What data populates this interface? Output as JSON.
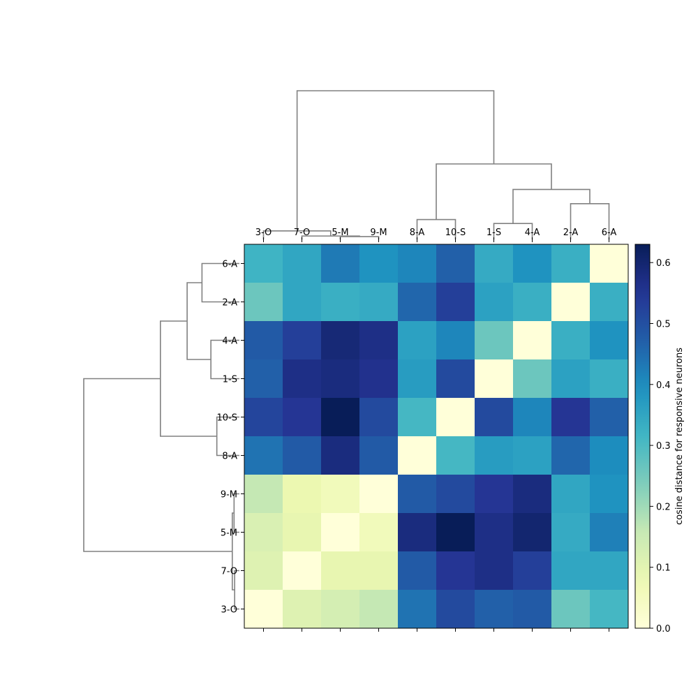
{
  "chart_data": {
    "type": "heatmap",
    "title": "",
    "x_labels": [
      "3-O",
      "7-O",
      "5-M",
      "9-M",
      "8-A",
      "10-S",
      "1-S",
      "4-A",
      "2-A",
      "6-A"
    ],
    "y_labels": [
      "6-A",
      "2-A",
      "4-A",
      "1-S",
      "10-S",
      "8-A",
      "9-M",
      "5-M",
      "7-O",
      "3-O"
    ],
    "values": [
      [
        0.32,
        0.35,
        0.43,
        0.39,
        0.41,
        0.47,
        0.34,
        0.39,
        0.33,
        0.0
      ],
      [
        0.26,
        0.35,
        0.33,
        0.34,
        0.46,
        0.53,
        0.36,
        0.33,
        0.0,
        0.33
      ],
      [
        0.48,
        0.53,
        0.59,
        0.57,
        0.36,
        0.41,
        0.26,
        0.0,
        0.33,
        0.39
      ],
      [
        0.47,
        0.57,
        0.58,
        0.56,
        0.37,
        0.51,
        0.0,
        0.26,
        0.36,
        0.33
      ],
      [
        0.52,
        0.55,
        0.63,
        0.51,
        0.31,
        0.0,
        0.51,
        0.41,
        0.55,
        0.47
      ],
      [
        0.44,
        0.48,
        0.58,
        0.48,
        0.0,
        0.31,
        0.37,
        0.36,
        0.46,
        0.4
      ],
      [
        0.16,
        0.08,
        0.06,
        0.0,
        0.48,
        0.51,
        0.55,
        0.58,
        0.35,
        0.39
      ],
      [
        0.12,
        0.09,
        0.0,
        0.06,
        0.58,
        0.63,
        0.57,
        0.6,
        0.34,
        0.42
      ],
      [
        0.11,
        0.0,
        0.09,
        0.09,
        0.48,
        0.55,
        0.57,
        0.53,
        0.35,
        0.35
      ],
      [
        0.0,
        0.11,
        0.13,
        0.16,
        0.44,
        0.51,
        0.47,
        0.48,
        0.26,
        0.31
      ]
    ],
    "colorbar": {
      "label": "cosine distance for responsive neurons",
      "vmin": 0.0,
      "vmax": 0.63,
      "ticks": [
        "0.0",
        "0.1",
        "0.2",
        "0.3",
        "0.4",
        "0.5",
        "0.6"
      ],
      "colormap": "YlGnBu"
    },
    "dendrogram_color": "#808080",
    "col_dendrogram": [
      {
        "leaves": [
          2,
          3
        ],
        "h": 0.05
      },
      {
        "leaves": [
          1,
          2,
          3
        ],
        "h": 0.06
      },
      {
        "leaves": [
          0,
          1,
          2,
          3
        ],
        "h": 0.15
      },
      {
        "leaves": [
          4,
          5
        ],
        "h": 0.35
      },
      {
        "leaves": [
          6,
          7
        ],
        "h": 0.28
      },
      {
        "leaves": [
          8,
          9
        ],
        "h": 0.63
      },
      {
        "leaves": [
          6,
          7,
          8,
          9
        ],
        "h": 0.88
      },
      {
        "leaves": [
          4,
          5,
          6,
          7,
          8,
          9
        ],
        "h": 1.33
      },
      {
        "leaves": [
          0,
          1,
          2,
          3,
          4,
          5,
          6,
          7,
          8,
          9
        ],
        "h": 2.62
      }
    ],
    "row_dendrogram": [
      {
        "leaves": [
          6,
          7
        ],
        "h": 0.09
      },
      {
        "leaves": [
          8,
          9
        ],
        "h": 0.08
      },
      {
        "leaves": [
          6,
          7,
          8,
          9
        ],
        "h": 0.12
      },
      {
        "leaves": [
          4,
          5
        ],
        "h": 0.38
      },
      {
        "leaves": [
          2,
          3
        ],
        "h": 0.48
      },
      {
        "leaves": [
          0,
          1
        ],
        "h": 0.63
      },
      {
        "leaves": [
          0,
          1,
          2,
          3
        ],
        "h": 0.88
      },
      {
        "leaves": [
          0,
          1,
          2,
          3,
          4,
          5
        ],
        "h": 1.33
      },
      {
        "leaves": [
          0,
          1,
          2,
          3,
          4,
          5,
          6,
          7,
          8,
          9
        ],
        "h": 2.62
      }
    ]
  }
}
